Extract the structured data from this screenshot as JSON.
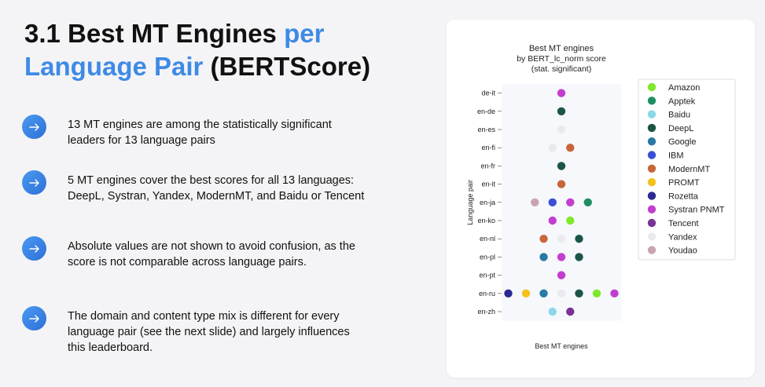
{
  "slide": {
    "title_part1": "3.1 Best MT Engines ",
    "title_accent1": "per",
    "title_accent2": "Language Pair",
    "title_part2": " (BERTScore)",
    "bullets": [
      "13 MT engines are among the statistically significant leaders for 13 language pairs",
      "5 MT engines cover the best scores for all 13 languages: DeepL, Systran, Yandex, ModernMT, and Baidu or Tencent",
      "Absolute values are not shown to avoid confusion, as the score is not comparable across language pairs.",
      "The domain and content type mix is different for every language pair (see the next slide) and largely influences this leaderboard."
    ],
    "bullet_icon": "arrow-right-icon",
    "colors": {
      "accent": "#3f8ae6",
      "bullet_icon": "#3a86ea"
    }
  },
  "chart_data": {
    "type": "scatter",
    "title": "Best MT engines\nby BERT_lc_norm score\n(stat. significant)",
    "xlabel": "Best MT engines",
    "ylabel": "Language pair",
    "categories": [
      "de-it",
      "en-de",
      "en-es",
      "en-fi",
      "en-fr",
      "en-it",
      "en-ja",
      "en-ko",
      "en-nl",
      "en-pl",
      "en-pt",
      "en-ru",
      "en-zh"
    ],
    "legend": {
      "position": "right",
      "entries": [
        {
          "name": "Amazon",
          "color": "#7ee82a"
        },
        {
          "name": "Apptek",
          "color": "#1f8f63"
        },
        {
          "name": "Baidu",
          "color": "#8ad8e8"
        },
        {
          "name": "DeepL",
          "color": "#1c5548"
        },
        {
          "name": "Google",
          "color": "#2879a6"
        },
        {
          "name": "IBM",
          "color": "#3a4fd6"
        },
        {
          "name": "ModernMT",
          "color": "#c8663a"
        },
        {
          "name": "PROMT",
          "color": "#f5c21a"
        },
        {
          "name": "Rozetta",
          "color": "#2b2a92"
        },
        {
          "name": "Systran PNMT",
          "color": "#c23ecf"
        },
        {
          "name": "Tencent",
          "color": "#7a3296"
        },
        {
          "name": "Yandex",
          "color": "#e9eaee"
        },
        {
          "name": "Youdao",
          "color": "#c8a4ae"
        }
      ]
    },
    "points": [
      {
        "pair": "de-it",
        "engines": [
          "Systran PNMT"
        ]
      },
      {
        "pair": "en-de",
        "engines": [
          "DeepL"
        ]
      },
      {
        "pair": "en-es",
        "engines": [
          "Yandex"
        ]
      },
      {
        "pair": "en-fi",
        "engines": [
          "Yandex",
          "ModernMT"
        ]
      },
      {
        "pair": "en-fr",
        "engines": [
          "DeepL"
        ]
      },
      {
        "pair": "en-it",
        "engines": [
          "ModernMT"
        ]
      },
      {
        "pair": "en-ja",
        "engines": [
          "Youdao",
          "IBM",
          "Systran PNMT",
          "Apptek"
        ]
      },
      {
        "pair": "en-ko",
        "engines": [
          "Systran PNMT",
          "Amazon"
        ]
      },
      {
        "pair": "en-nl",
        "engines": [
          "ModernMT",
          "Yandex",
          "DeepL"
        ]
      },
      {
        "pair": "en-pl",
        "engines": [
          "Google",
          "Systran PNMT",
          "DeepL"
        ]
      },
      {
        "pair": "en-pt",
        "engines": [
          "Systran PNMT"
        ]
      },
      {
        "pair": "en-ru",
        "engines": [
          "Rozetta",
          "PROMT",
          "Google",
          "Yandex",
          "DeepL",
          "Amazon",
          "Systran PNMT"
        ]
      },
      {
        "pair": "en-zh",
        "engines": [
          "Baidu",
          "Tencent"
        ]
      }
    ],
    "grid": false
  }
}
